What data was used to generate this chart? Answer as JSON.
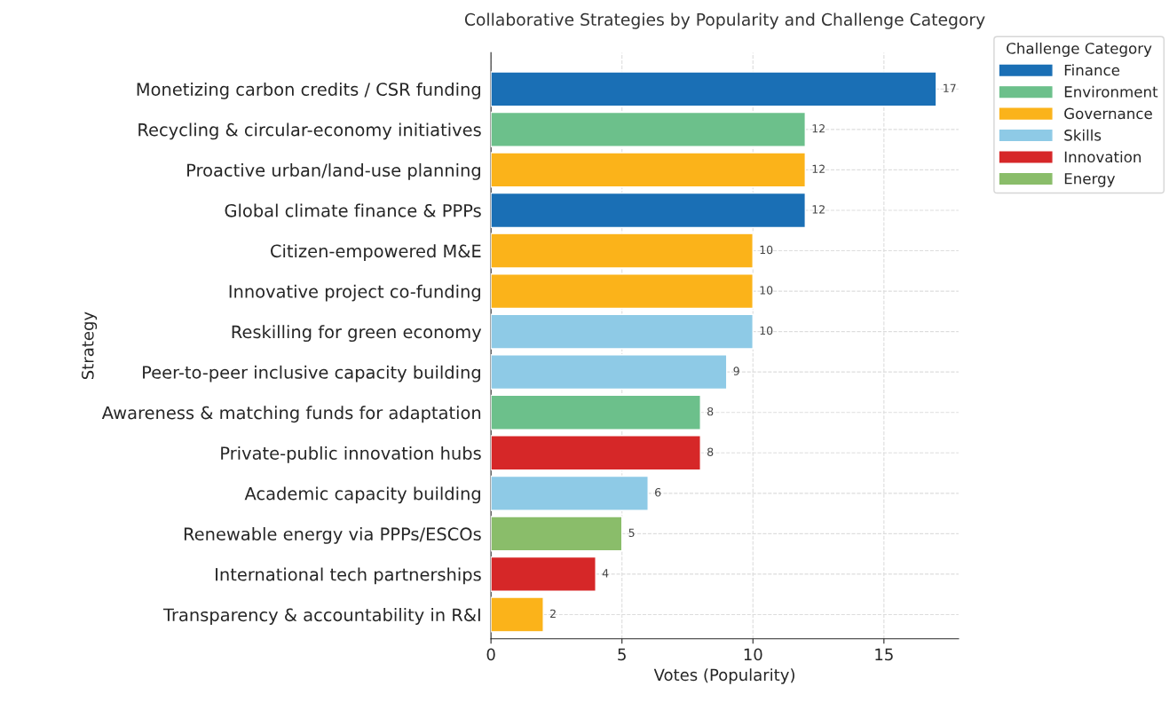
{
  "chart_data": {
    "type": "bar",
    "orientation": "horizontal",
    "title": "Collaborative Strategies by Popularity and Challenge Category",
    "xlabel": "Votes (Popularity)",
    "ylabel": "Strategy",
    "legend_title": "Challenge Category",
    "categories": [
      "Monetizing carbon credits / CSR funding",
      "Recycling & circular-economy initiatives",
      "Proactive urban/land-use planning",
      "Global climate finance & PPPs",
      "Citizen-empowered M&E",
      "Innovative project co-funding",
      "Reskilling for green economy",
      "Peer-to-peer inclusive capacity building",
      "Awareness & matching funds for adaptation",
      "Private-public innovation hubs",
      "Academic capacity building",
      "Renewable energy via PPPs/ESCOs",
      "International tech partnerships",
      "Transparency & accountability in R&I"
    ],
    "series": [
      {
        "name": "Finance",
        "color": "#1a6fb5",
        "values": [
          17,
          null,
          null,
          12,
          null,
          null,
          null,
          null,
          null,
          null,
          null,
          null,
          null,
          null
        ]
      },
      {
        "name": "Environment",
        "color": "#6cc08b",
        "values": [
          null,
          12,
          null,
          null,
          null,
          null,
          null,
          null,
          8,
          null,
          null,
          null,
          null,
          null
        ]
      },
      {
        "name": "Governance",
        "color": "#fbb31a",
        "values": [
          null,
          null,
          12,
          null,
          10,
          10,
          null,
          null,
          null,
          null,
          null,
          null,
          null,
          2
        ]
      },
      {
        "name": "Skills",
        "color": "#8ecae6",
        "values": [
          null,
          null,
          null,
          null,
          null,
          null,
          10,
          9,
          null,
          null,
          6,
          null,
          null,
          null
        ]
      },
      {
        "name": "Innovation",
        "color": "#d62728",
        "values": [
          null,
          null,
          null,
          null,
          null,
          null,
          null,
          null,
          null,
          8,
          null,
          null,
          4,
          null
        ]
      },
      {
        "name": "Energy",
        "color": "#8abd6a",
        "values": [
          null,
          null,
          null,
          null,
          null,
          null,
          null,
          null,
          null,
          null,
          null,
          5,
          null,
          null
        ]
      }
    ],
    "xlim": [
      0,
      17.85
    ],
    "xticks": [
      0,
      5,
      10,
      15
    ],
    "grid": true,
    "legend": "top right",
    "data_labels": true
  }
}
